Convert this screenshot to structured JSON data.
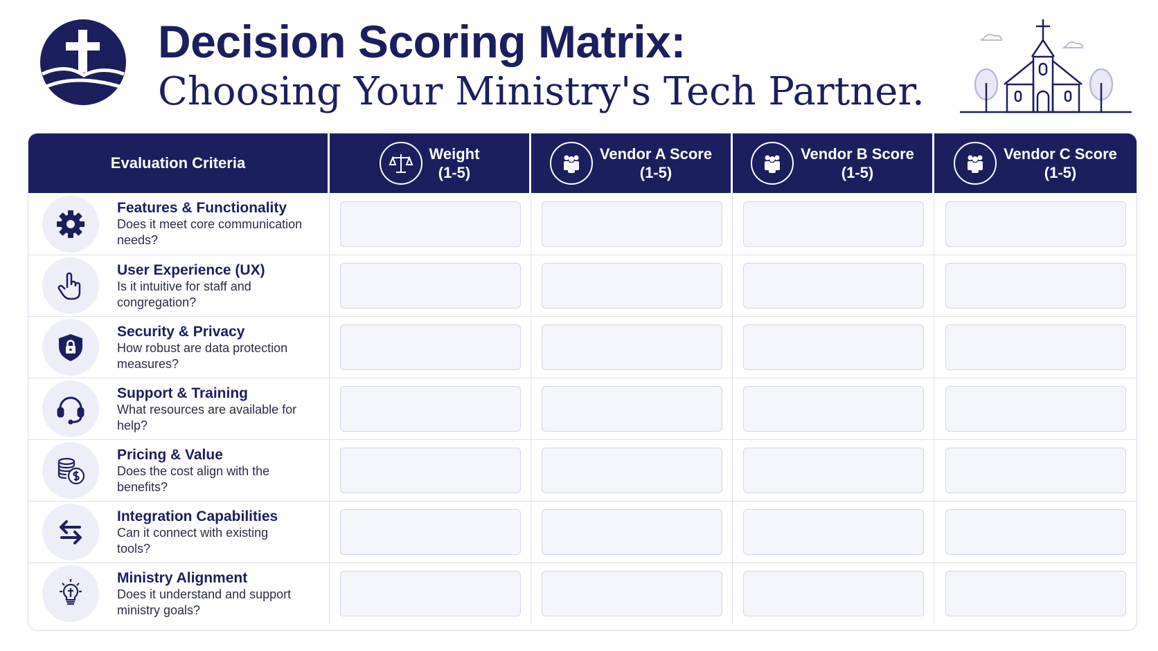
{
  "header": {
    "title": "Decision Scoring Matrix:",
    "subtitle": "Choosing Your Ministry's Tech Partner."
  },
  "colors": {
    "navy": "#1b1f5e",
    "score_box": "#f4f4fb",
    "icon_bg": "#eeeef8"
  },
  "matrix": {
    "criteria_header": "Evaluation Criteria",
    "columns": [
      {
        "icon": "scale-icon",
        "label": "Weight",
        "range": "(1-5)"
      },
      {
        "icon": "people-icon",
        "label": "Vendor A Score",
        "range": "(1-5)"
      },
      {
        "icon": "people-icon",
        "label": "Vendor B Score",
        "range": "(1-5)"
      },
      {
        "icon": "people-icon",
        "label": "Vendor C Score",
        "range": "(1-5)"
      }
    ],
    "rows": [
      {
        "icon": "gear-icon",
        "name": "Features & Functionality",
        "desc": "Does it meet core communication needs?"
      },
      {
        "icon": "pointer-hand-icon",
        "name": "User Experience (UX)",
        "desc": "Is it intuitive for staff and congregation?"
      },
      {
        "icon": "shield-lock-icon",
        "name": "Security & Privacy",
        "desc": "How robust are data protection measures?"
      },
      {
        "icon": "headset-icon",
        "name": "Support & Training",
        "desc": "What resources are available for help?"
      },
      {
        "icon": "coins-dollar-icon",
        "name": "Pricing & Value",
        "desc": "Does the cost align with the benefits?"
      },
      {
        "icon": "swap-arrows-icon",
        "name": "Integration Capabilities",
        "desc": "Can it connect with existing tools?"
      },
      {
        "icon": "lightbulb-cross-icon",
        "name": "Ministry Alignment",
        "desc": "Does it understand and support ministry goals?"
      }
    ]
  }
}
